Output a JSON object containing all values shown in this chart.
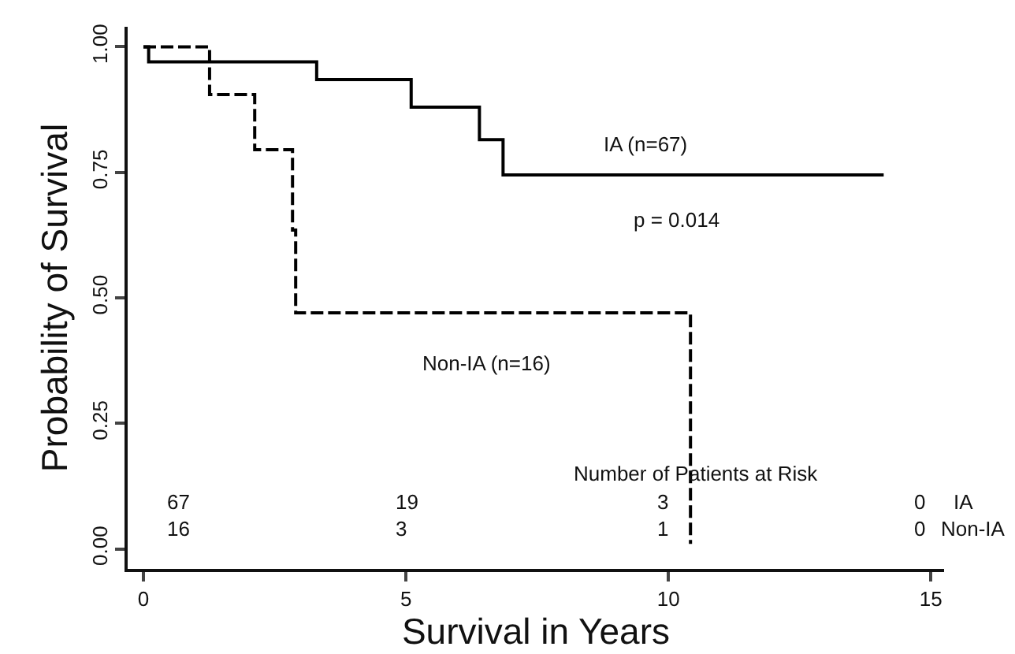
{
  "chart_data": {
    "type": "step",
    "xlabel": "Survival in Years",
    "ylabel": "Probability of Survival",
    "xlim": [
      -0.3,
      15.25
    ],
    "xticks": [
      0,
      5,
      10,
      15
    ],
    "ylim": [
      -0.04,
      1.04
    ],
    "yticks": [
      {
        "value": 0,
        "label": "0.00"
      },
      {
        "value": 0.25,
        "label": "0.25"
      },
      {
        "value": 0.5,
        "label": "0.50"
      },
      {
        "value": 0.75,
        "label": "0.75"
      },
      {
        "value": 1,
        "label": "1.00"
      }
    ],
    "grid": false,
    "series": [
      {
        "color": "#000000",
        "line_style": "solid",
        "x": [
          0,
          0.1,
          3.3,
          5.1,
          6.4,
          6.85,
          14.1
        ],
        "values": [
          1,
          0.97,
          0.935,
          0.88,
          0.815,
          0.745,
          0.745
        ]
      },
      {
        "color": "#000000",
        "line_style": "dashed",
        "x": [
          0,
          1.26,
          2.12,
          2.84,
          2.9,
          10.42,
          10.42
        ],
        "values": [
          1,
          0.905,
          0.795,
          0.635,
          0.47,
          0.47,
          0.01
        ]
      }
    ],
    "annotations": [
      "IA (n=67)",
      "p = 0.014",
      "Non-IA (n=16)",
      "Number of Patients at Risk",
      "67",
      "19",
      "3",
      "0",
      "IA",
      "16",
      "3",
      "1",
      "0",
      "Non-IA"
    ]
  }
}
